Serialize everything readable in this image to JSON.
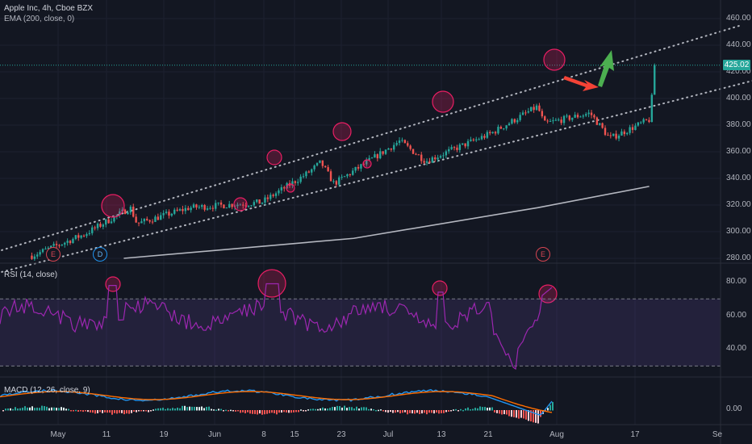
{
  "header": {
    "title": "Apple Inc, 4h, Cboe BZX",
    "ema_label": "EMA (200, close, 0)"
  },
  "price_axis": {
    "labels": [
      "460.00",
      "440.00",
      "420.00",
      "400.00",
      "380.00",
      "360.00",
      "340.00",
      "320.00",
      "300.00",
      "280.00"
    ],
    "current_price": "425.02"
  },
  "rsi_panel": {
    "label": "RSI (14, close)",
    "labels": [
      "80.00",
      "60.00",
      "40.00"
    ]
  },
  "macd_panel": {
    "label": "MACD (12, 26, close, 9)",
    "labels": [
      "0.00"
    ]
  },
  "time_axis": {
    "labels": [
      "May",
      "11",
      "19",
      "Jun",
      "8",
      "15",
      "23",
      "Jul",
      "13",
      "21",
      "Aug",
      "17",
      "Se"
    ]
  },
  "events": {
    "earnings_1": "E",
    "dividend": "D",
    "earnings_2": "E"
  },
  "colors": {
    "background": "#131722",
    "up": "#26a69a",
    "down": "#ef5350",
    "ema": "#d1d4dc",
    "rsi": "#9c27b0",
    "macd": "#2196f3",
    "signal": "#ff6d00",
    "highlight": "#e91e63",
    "arrow_red": "#f44336",
    "arrow_green": "#4caf50"
  },
  "chart_data": {
    "type": "candlestick",
    "title": "Apple Inc, 4h, Cboe BZX",
    "price_range": [
      275,
      465
    ],
    "rsi_range": [
      20,
      90
    ],
    "rsi_levels": [
      70,
      30
    ],
    "close_anchors": [
      {
        "date": "Apr 27",
        "close": 282
      },
      {
        "date": "May 5",
        "close": 298
      },
      {
        "date": "May 12",
        "close": 318
      },
      {
        "date": "May 13",
        "close": 306
      },
      {
        "date": "May 21",
        "close": 318
      },
      {
        "date": "Jun 1",
        "close": 322
      },
      {
        "date": "Jun 8",
        "close": 344
      },
      {
        "date": "Jun 10",
        "close": 352
      },
      {
        "date": "Jun 12",
        "close": 336
      },
      {
        "date": "Jun 22",
        "close": 368
      },
      {
        "date": "Jun 26",
        "close": 353
      },
      {
        "date": "Jul 6",
        "close": 374
      },
      {
        "date": "Jul 13",
        "close": 394
      },
      {
        "date": "Jul 14",
        "close": 381
      },
      {
        "date": "Jul 21",
        "close": 389
      },
      {
        "date": "Jul 24",
        "close": 370
      },
      {
        "date": "Jul 30",
        "close": 384
      },
      {
        "date": "Jul 31",
        "close": 425
      }
    ],
    "ema_200_anchors": [
      {
        "date": "May 11",
        "value": 280
      },
      {
        "date": "Jun 15",
        "value": 295
      },
      {
        "date": "Jul 13",
        "value": 318
      },
      {
        "date": "Jul 30",
        "value": 334
      }
    ],
    "channel_lines": [
      {
        "name": "upper",
        "from": {
          "date": "Apr 21",
          "value": 284
        },
        "to": {
          "date": "Aug 13",
          "value": 455
        }
      },
      {
        "name": "lower",
        "from": {
          "date": "Apr 21",
          "value": 268
        },
        "to": {
          "date": "Sep 1",
          "value": 435
        }
      }
    ]
  }
}
